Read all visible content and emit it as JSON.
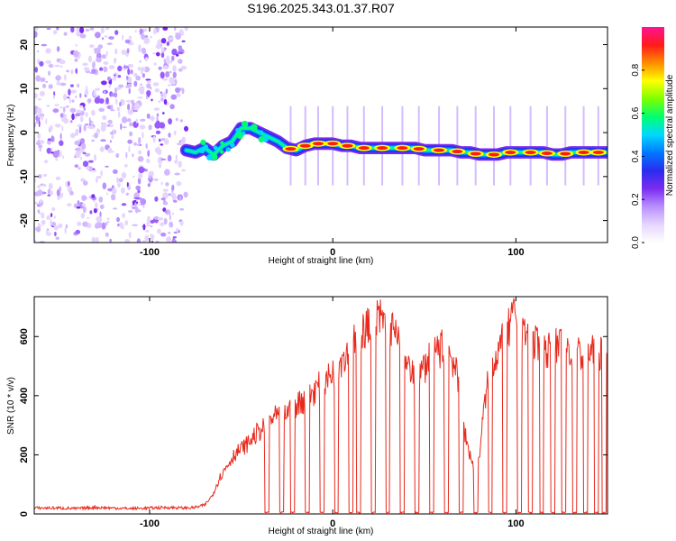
{
  "title": "S196.2025.343.01.37.R07",
  "chart_data": [
    {
      "id": "spectrogram",
      "type": "heatmap",
      "xlabel": "Height of straight line (km)",
      "ylabel": "Frequency (Hz)",
      "xlim": [
        -163,
        150
      ],
      "ylim": [
        -25,
        24
      ],
      "xticks": [
        -100,
        0,
        100
      ],
      "yticks": [
        -20,
        -10,
        0,
        10,
        20
      ],
      "noise_region_x": [
        -163,
        -80
      ],
      "ridge": {
        "x": [
          -80,
          -75,
          -70,
          -65,
          -60,
          -55,
          -50,
          -45,
          -40,
          -35,
          -30,
          -25,
          -20,
          -15,
          -10,
          -5,
          0,
          5,
          10,
          15,
          20,
          25,
          30,
          35,
          40,
          45,
          50,
          55,
          60,
          65,
          70,
          75,
          80,
          85,
          90,
          95,
          100,
          105,
          110,
          115,
          120,
          125,
          130,
          135,
          140,
          145,
          150
        ],
        "y": [
          -4,
          -4.5,
          -3.5,
          -5,
          -3,
          -2,
          1,
          1,
          0,
          -1,
          -2,
          -3.5,
          -4,
          -3,
          -2.5,
          -2.5,
          -2.5,
          -3,
          -3,
          -3.5,
          -3.5,
          -3.5,
          -3.5,
          -3.5,
          -3.5,
          -3.5,
          -4,
          -4,
          -4,
          -4,
          -4.5,
          -4.5,
          -5,
          -5,
          -5,
          -4.5,
          -4.5,
          -4.5,
          -4.5,
          -4.5,
          -5,
          -5,
          -4.5,
          -4.5,
          -4.5,
          -4.5,
          -4.5
        ]
      },
      "peak_markers_x": [
        -23,
        -15,
        -8,
        0,
        8,
        17,
        27,
        38,
        47,
        58,
        68,
        78,
        88,
        97,
        108,
        117,
        127,
        137,
        145
      ]
    },
    {
      "id": "snr",
      "type": "line",
      "xlabel": "Height of straight line (km)",
      "ylabel": "SNR (10 * v/v)",
      "xlim": [
        -163,
        150
      ],
      "ylim": [
        0,
        735
      ],
      "xticks": [
        -100,
        0,
        100
      ],
      "yticks": [
        0,
        200,
        400,
        600
      ],
      "series": [
        {
          "name": "SNR",
          "color": "#e8291c",
          "x": [
            -163,
            -150,
            -140,
            -130,
            -120,
            -110,
            -100,
            -90,
            -80,
            -75,
            -70,
            -66,
            -62,
            -58,
            -54,
            -50,
            -46,
            -42,
            -38,
            -34,
            -30,
            -26,
            -22,
            -18,
            -14,
            -10,
            -6,
            -2,
            2,
            6,
            10,
            14,
            18,
            22,
            26,
            30,
            34,
            38,
            42,
            46,
            50,
            54,
            58,
            62,
            66,
            70,
            72,
            74,
            76,
            78,
            80,
            82,
            84,
            88,
            92,
            96,
            100,
            104,
            108,
            112,
            116,
            120,
            124,
            128,
            132,
            136,
            140,
            144,
            148,
            150
          ],
          "y": [
            20,
            20,
            18,
            22,
            20,
            18,
            20,
            22,
            20,
            22,
            30,
            60,
            120,
            160,
            200,
            220,
            240,
            270,
            290,
            320,
            330,
            340,
            360,
            380,
            390,
            420,
            440,
            460,
            500,
            540,
            560,
            600,
            620,
            640,
            660,
            640,
            600,
            540,
            480,
            440,
            500,
            540,
            560,
            560,
            520,
            380,
            280,
            220,
            180,
            130,
            200,
            320,
            420,
            520,
            580,
            620,
            680,
            620,
            580,
            560,
            560,
            560,
            560,
            560,
            540,
            540,
            540,
            540,
            540,
            530
          ]
        }
      ],
      "dropouts_x": [
        -36,
        -28,
        -22,
        -14,
        -6,
        2,
        10,
        14,
        22,
        30,
        38,
        46,
        54,
        62,
        70,
        78,
        86,
        94,
        102,
        108,
        114,
        120,
        126,
        132,
        138,
        144,
        148
      ]
    }
  ],
  "colorbar": {
    "label": "Normalized spectral amplitude",
    "range": [
      0,
      1
    ],
    "ticks": [
      "0.0",
      "0.2",
      "0.4",
      "0.6",
      "0.8"
    ],
    "colors": [
      "#ffffff",
      "#e6d6ff",
      "#b890ff",
      "#7b2cf0",
      "#2a2cf0",
      "#0078ff",
      "#00d8ff",
      "#00ff70",
      "#7dff00",
      "#ffff00",
      "#ff8c00",
      "#ff1a1a",
      "#ff1493"
    ]
  }
}
